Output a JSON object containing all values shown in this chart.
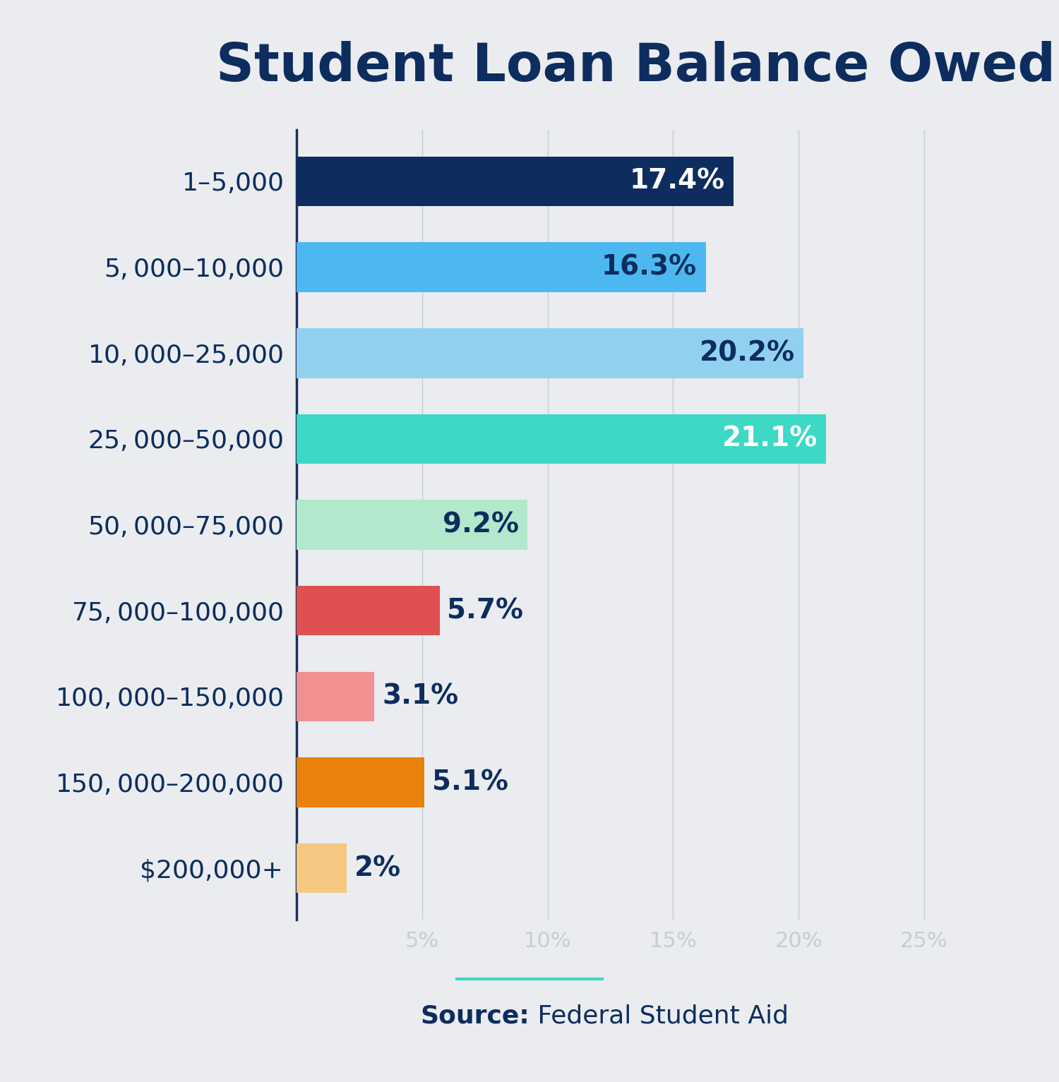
{
  "title": "Student Loan Balance Owed",
  "categories": [
    "$1–$5,000",
    "$5,000–$10,000",
    "$10,000–$25,000",
    "$25,000–$50,000",
    "$50,000–$75,000",
    "$75,000–$100,000",
    "$100,000–$150,000",
    "$150,000–$200,000",
    "$200,000+"
  ],
  "values": [
    17.4,
    16.3,
    20.2,
    21.1,
    9.2,
    5.7,
    3.1,
    5.1,
    2.0
  ],
  "labels": [
    "17.4%",
    "16.3%",
    "20.2%",
    "21.1%",
    "9.2%",
    "5.7%",
    "3.1%",
    "5.1%",
    "2%"
  ],
  "label_colors": [
    "#ffffff",
    "#0d2d5e",
    "#0d2d5e",
    "#ffffff",
    "#0d2d5e",
    "#ffffff",
    "#0d2d5e",
    "#0d2d5e",
    "#0d2d5e"
  ],
  "bar_colors": [
    "#0d2d5e",
    "#4db8f0",
    "#92d0f0",
    "#3dd9c5",
    "#b2e8cc",
    "#e05050",
    "#f09090",
    "#e8820c",
    "#f5c882"
  ],
  "background_color": "#eaecef",
  "title_color": "#0d2d5e",
  "ylabel_color": "#0d2d5e",
  "source_bold": "Source:",
  "source_normal": " Federal Student Aid",
  "source_color": "#0d2d5e",
  "teal_line_color": "#3dd9c5",
  "xlim": [
    0,
    27
  ],
  "xticks": [
    5,
    10,
    15,
    20,
    25
  ],
  "xtick_labels": [
    "5%",
    "10%",
    "15%",
    "20%",
    "25%"
  ],
  "grid_color": "#c8cdd4",
  "title_fontsize": 54,
  "label_fontsize": 26,
  "bar_label_fontsize": 28,
  "source_fontsize": 26,
  "tick_fontsize": 22
}
